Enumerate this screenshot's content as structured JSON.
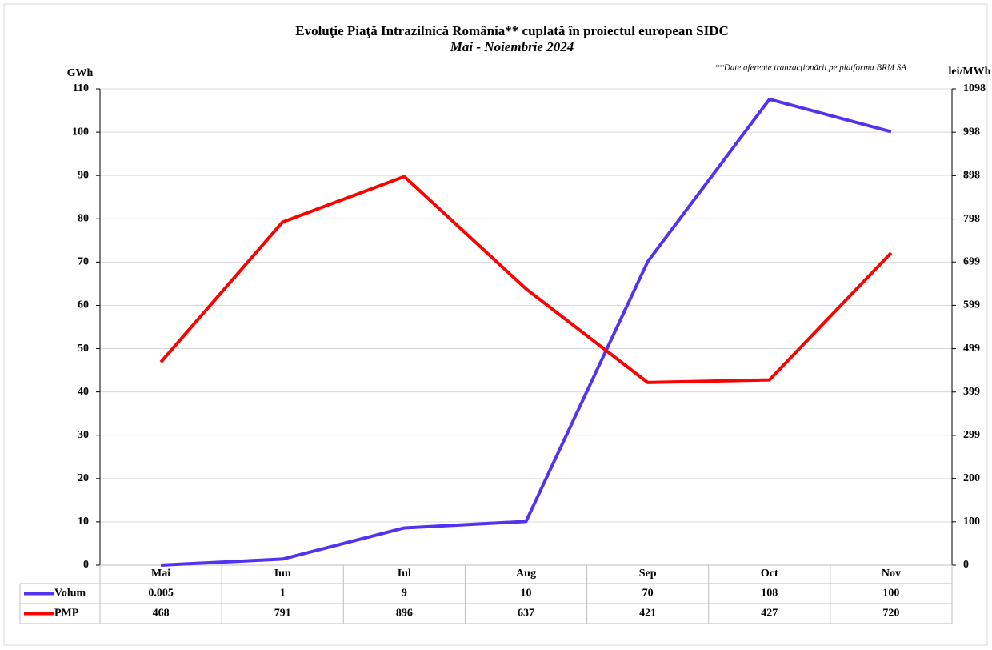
{
  "chart_data": {
    "type": "line",
    "title": "Evoluţie Piaţă Intrazilnică România** cuplată în proiectul  european SIDC",
    "subtitle": "Mai - Noiembrie 2024",
    "annotation": "**Date aferente tranzacționării pe platforma BRM SA",
    "y_label": "GWh",
    "y2_label": "lei/MWh",
    "categories": [
      "Mai",
      "Iun",
      "Iul",
      "Aug",
      "Sep",
      "Oct",
      "Nov"
    ],
    "series": [
      {
        "name": "Volum",
        "color": "#5233f0",
        "values": [
          0.005,
          1.4,
          8.6,
          10.1,
          70.1,
          107.6,
          100.1
        ],
        "value_labels": [
          "0.005",
          "1",
          "9",
          "10",
          "70",
          "108",
          "100"
        ]
      },
      {
        "name": "PMP",
        "color": "#ff0000",
        "axis": "y2",
        "values": [
          468,
          791,
          896,
          637,
          421,
          427,
          720
        ]
      }
    ],
    "ylim": [
      0,
      110
    ],
    "yticks": [
      0,
      10,
      20,
      30,
      40,
      50,
      60,
      70,
      80,
      90,
      100,
      110
    ],
    "y2lim": [
      0,
      1098
    ],
    "y2ticks": [
      0,
      100,
      200,
      299,
      399,
      499,
      599,
      699,
      798,
      898,
      998,
      1098
    ],
    "grid": true
  }
}
